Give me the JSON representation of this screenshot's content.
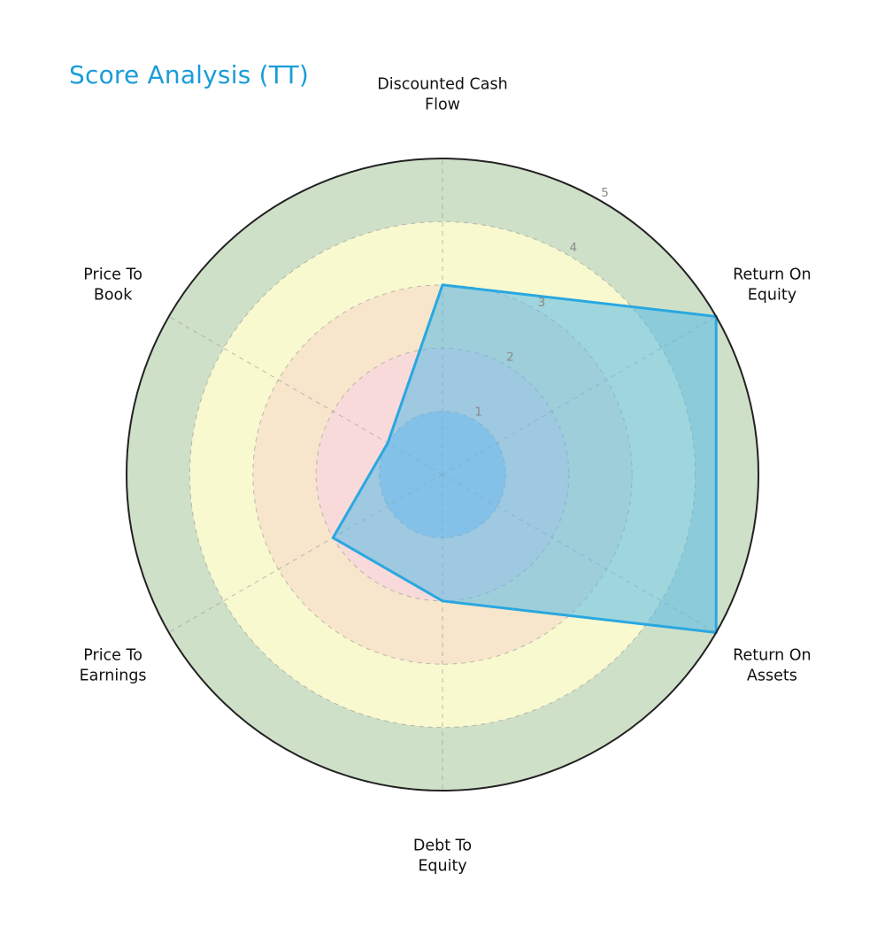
{
  "title": {
    "text": "Score Analysis (TT)",
    "color": "#1A9DD8"
  },
  "chart_data": {
    "type": "radar",
    "categories": [
      "Discounted Cash Flow",
      "Return On Equity",
      "Return On Assets",
      "Debt To Equity",
      "Price To Earnings",
      "Price To Book"
    ],
    "category_lines": [
      [
        "Discounted Cash",
        "Flow"
      ],
      [
        "Return On",
        "Equity"
      ],
      [
        "Return On",
        "Assets"
      ],
      [
        "Debt To",
        "Equity"
      ],
      [
        "Price To",
        "Earnings"
      ],
      [
        "Price To",
        "Book"
      ]
    ],
    "values": [
      3,
      5,
      5,
      2,
      2,
      1
    ],
    "ylim": [
      0,
      5
    ],
    "ticks": [
      "1",
      "2",
      "3",
      "4",
      "5"
    ],
    "start_angle_deg": 90,
    "direction": "clockwise",
    "tick_angle_deg": 60,
    "grid": true,
    "legend": "none",
    "series_name": "Score",
    "series_fill": "#56B9E8",
    "series_fill_opacity": 0.55,
    "series_stroke": "#29A8E0",
    "ring_colors": [
      "#BDC9E8",
      "#F8DADA",
      "#F7E6CB",
      "#F9F9D0",
      "#CFE0C8"
    ],
    "grid_color": "#999999",
    "outer_circle_color": "#222222",
    "tick_label_color": "#8A8A8A",
    "axis_label_color": "#111111"
  }
}
